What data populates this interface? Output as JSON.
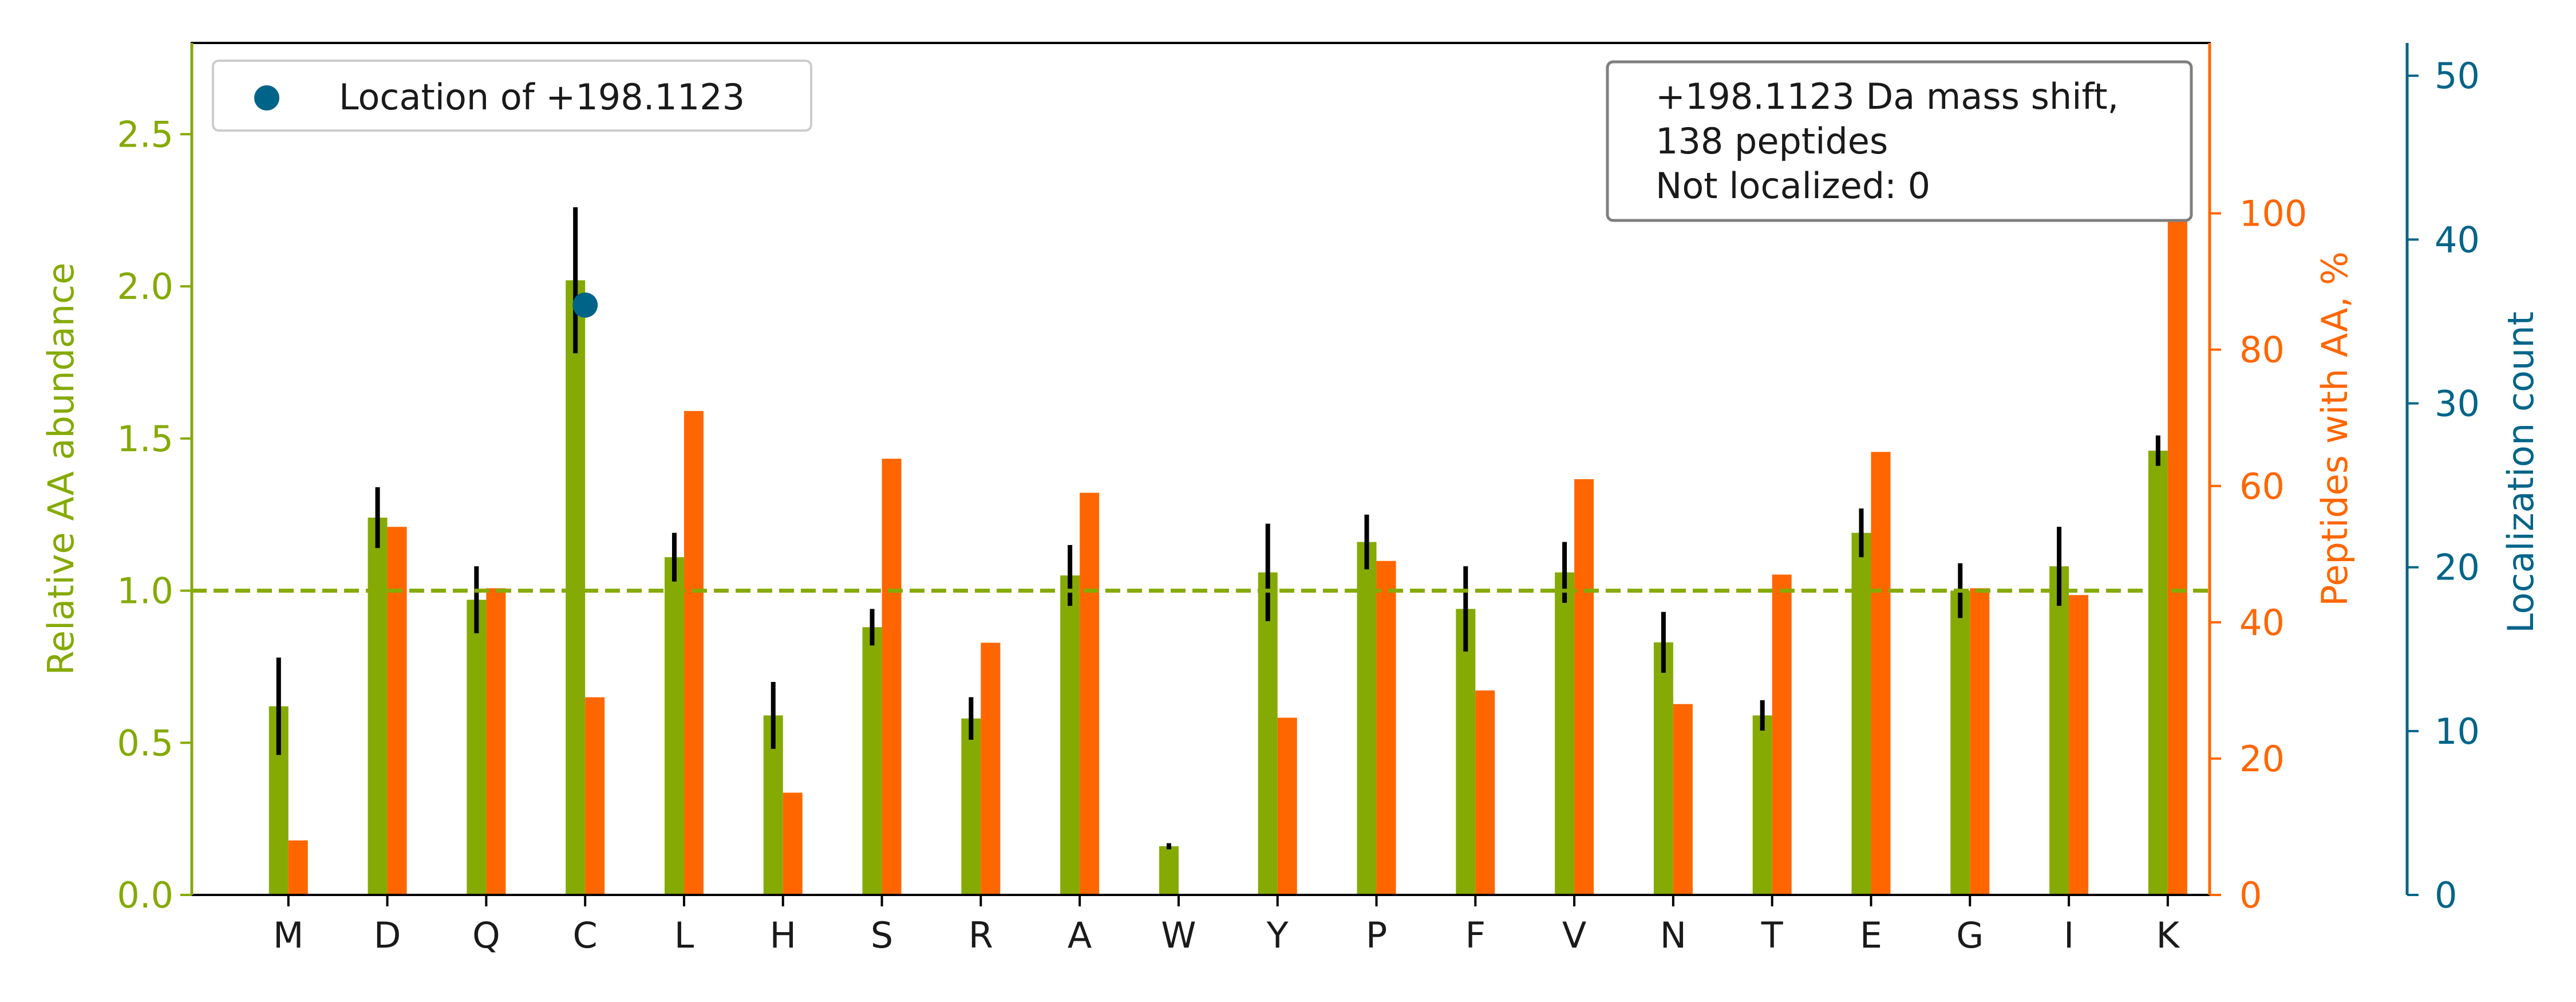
{
  "chart_data": {
    "type": "bar",
    "categories": [
      "M",
      "D",
      "Q",
      "C",
      "L",
      "H",
      "S",
      "R",
      "A",
      "W",
      "Y",
      "P",
      "F",
      "V",
      "N",
      "T",
      "E",
      "G",
      "I",
      "K"
    ],
    "series": [
      {
        "axis": "left",
        "color": "#85aa04",
        "values": [
          0.62,
          1.24,
          0.97,
          2.02,
          1.11,
          0.59,
          0.88,
          0.58,
          1.05,
          0.16,
          1.06,
          1.16,
          0.94,
          1.06,
          0.83,
          0.59,
          1.19,
          1.0,
          1.08,
          1.46
        ],
        "error": [
          0.16,
          0.1,
          0.11,
          0.24,
          0.08,
          0.11,
          0.06,
          0.07,
          0.1,
          0.01,
          0.16,
          0.09,
          0.14,
          0.1,
          0.1,
          0.05,
          0.08,
          0.09,
          0.13,
          0.05
        ]
      },
      {
        "axis": "right",
        "color": "#ff6600",
        "values": [
          8,
          54,
          45,
          29,
          71,
          15,
          64,
          37,
          59,
          0,
          26,
          49,
          30,
          61,
          28,
          47,
          65,
          45,
          44,
          100
        ]
      }
    ],
    "scatter": {
      "name": "Location of +198.1123",
      "color": "#006489",
      "points": [
        {
          "category": "C",
          "value": 36
        }
      ]
    },
    "axes": {
      "left": {
        "label": "Relative AA abundance",
        "ylim": [
          0,
          2.8
        ],
        "ticks": [
          "0.0",
          "0.5",
          "1.0",
          "1.5",
          "2.0",
          "2.5"
        ],
        "color": "#85aa04"
      },
      "right": {
        "label": "Peptides with AA, %",
        "ylim": [
          0,
          125
        ],
        "ticks": [
          "0",
          "20",
          "40",
          "60",
          "80",
          "100"
        ],
        "color": "#ff6600"
      },
      "right2": {
        "label": "Localization count",
        "ylim": [
          0,
          52
        ],
        "ticks": [
          "0",
          "10",
          "20",
          "30",
          "40",
          "50"
        ],
        "color": "#006489"
      }
    },
    "reference_line": {
      "axis": "left",
      "value": 1.0,
      "style": "dashed",
      "color": "#85aa04"
    },
    "legend": {
      "placement": "top-left",
      "entries": [
        "Location of +198.1123"
      ]
    },
    "annotation": {
      "placement": "top-right",
      "lines": [
        "+198.1123 Da mass shift,",
        "138 peptides",
        "Not localized: 0"
      ]
    }
  }
}
